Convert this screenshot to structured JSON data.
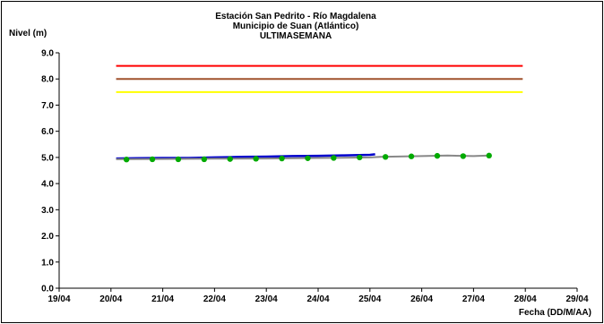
{
  "chart_data": {
    "type": "line",
    "title_lines": [
      "Estación San Pedrito - Río Magdalena",
      "Municipio de Suan (Atlántico)",
      "ULTIMASEMANA"
    ],
    "ylabel": "Nivel (m)",
    "xlabel": "Fecha (DD/M/AA)",
    "x_ticks": [
      "19/04",
      "20/04",
      "21/04",
      "22/04",
      "23/04",
      "24/04",
      "25/04",
      "26/04",
      "27/04",
      "28/04",
      "29/04"
    ],
    "y_ticks": [
      "0.0",
      "1.0",
      "2.0",
      "3.0",
      "4.0",
      "5.0",
      "6.0",
      "7.0",
      "8.0",
      "9.0"
    ],
    "xlim_days": [
      19,
      29
    ],
    "ylim": [
      0,
      9
    ],
    "grid": false,
    "threshold_lines": [
      {
        "color": "#ff0000",
        "y": 8.5,
        "x_start": 20.1,
        "x_end": 27.95
      },
      {
        "color": "#a0522d",
        "y": 8.0,
        "x_start": 20.1,
        "x_end": 27.95
      },
      {
        "color": "#ffff00",
        "y": 7.5,
        "x_start": 20.1,
        "x_end": 27.95
      }
    ],
    "series": [
      {
        "color": "#0000cc",
        "style": "line",
        "x_days": [
          20.1,
          20.5,
          21.0,
          21.5,
          22.0,
          22.5,
          23.0,
          23.5,
          24.0,
          24.5,
          25.0,
          25.1
        ],
        "values": [
          4.96,
          4.97,
          4.98,
          4.98,
          5.0,
          5.02,
          5.03,
          5.05,
          5.06,
          5.08,
          5.1,
          5.12
        ]
      },
      {
        "color": "#888888",
        "style": "line",
        "x_days": [
          20.1,
          21.0,
          22.0,
          23.0,
          24.0,
          25.0,
          25.2,
          26.0,
          26.5,
          27.0,
          27.3
        ],
        "values": [
          4.93,
          4.94,
          4.95,
          4.96,
          4.98,
          5.0,
          5.02,
          5.05,
          5.07,
          5.05,
          5.07
        ]
      },
      {
        "color": "#00aa00",
        "style": "markers",
        "x_days": [
          20.3,
          20.8,
          21.3,
          21.8,
          22.3,
          22.8,
          23.3,
          23.8,
          24.3,
          24.8,
          25.3,
          25.8,
          26.3,
          26.8,
          27.3
        ],
        "values": [
          4.92,
          4.93,
          4.93,
          4.93,
          4.94,
          4.95,
          4.96,
          4.97,
          4.98,
          5.0,
          5.02,
          5.04,
          5.06,
          5.05,
          5.07
        ]
      }
    ]
  }
}
